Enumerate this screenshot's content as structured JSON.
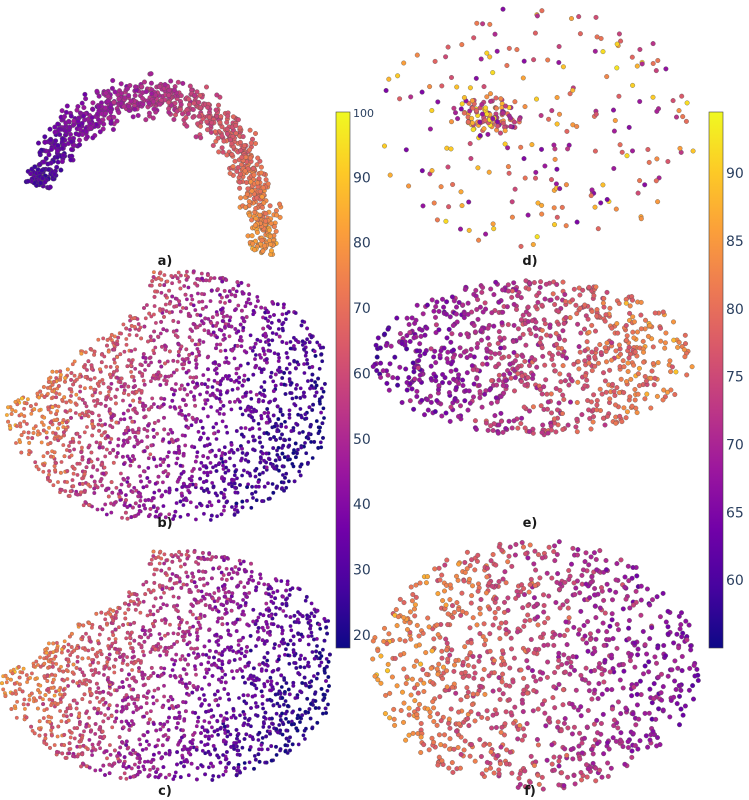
{
  "figure": {
    "panels": [
      "a)",
      "b)",
      "c)",
      "d)",
      "e)",
      "f)"
    ]
  },
  "colors": {
    "colormap": "plasma",
    "stops": [
      "#0d0887",
      "#46039f",
      "#7201a8",
      "#9c179e",
      "#bd3786",
      "#d8576b",
      "#ed7953",
      "#fb9f3a",
      "#fdca26",
      "#f0f921"
    ],
    "marker_edge": "#555555",
    "colorbar_border": "#444444",
    "tick_text": "#2a3f5f"
  },
  "chart_data": [
    {
      "type": "scatter",
      "panel": "a)",
      "shape": "arc",
      "colorbar": "left",
      "color_gradient": "increasing toward right end of arc",
      "approx_points": 900
    },
    {
      "type": "scatter",
      "panel": "b)",
      "shape": "blob",
      "colorbar": "left",
      "color_gradient": "high values at left, low values at upper right",
      "approx_points": 2600
    },
    {
      "type": "scatter",
      "panel": "c)",
      "shape": "blob",
      "colorbar": "left",
      "color_gradient": "high values at left, low values at upper right",
      "approx_points": 2600
    },
    {
      "type": "scatter",
      "panel": "d)",
      "shape": "sparse-cloud",
      "colorbar": "right",
      "color_gradient": "mixed",
      "approx_points": 330
    },
    {
      "type": "scatter",
      "panel": "e)",
      "shape": "ellipse",
      "colorbar": "right",
      "color_gradient": "low at left, high at right",
      "approx_points": 900
    },
    {
      "type": "scatter",
      "panel": "f)",
      "shape": "ellipse",
      "colorbar": "right",
      "color_gradient": "high at left, low at right",
      "approx_points": 1100
    }
  ],
  "colorbars": [
    {
      "name": "left",
      "range": [
        18,
        100
      ],
      "ticks": [
        {
          "value": 100,
          "label": "100"
        },
        {
          "value": 90,
          "label": "90"
        },
        {
          "value": 80,
          "label": "80"
        },
        {
          "value": 70,
          "label": "70"
        },
        {
          "value": 60,
          "label": "60"
        },
        {
          "value": 50,
          "label": "50"
        },
        {
          "value": 40,
          "label": "40"
        },
        {
          "value": 30,
          "label": "30"
        },
        {
          "value": 20,
          "label": "20"
        }
      ]
    },
    {
      "name": "right",
      "range": [
        55,
        94.5
      ],
      "ticks": [
        {
          "value": 90,
          "label": "90"
        },
        {
          "value": 85,
          "label": "85"
        },
        {
          "value": 80,
          "label": "80"
        },
        {
          "value": 75,
          "label": "75"
        },
        {
          "value": 70,
          "label": "70"
        },
        {
          "value": 65,
          "label": "65"
        },
        {
          "value": 60,
          "label": "60"
        }
      ]
    }
  ]
}
